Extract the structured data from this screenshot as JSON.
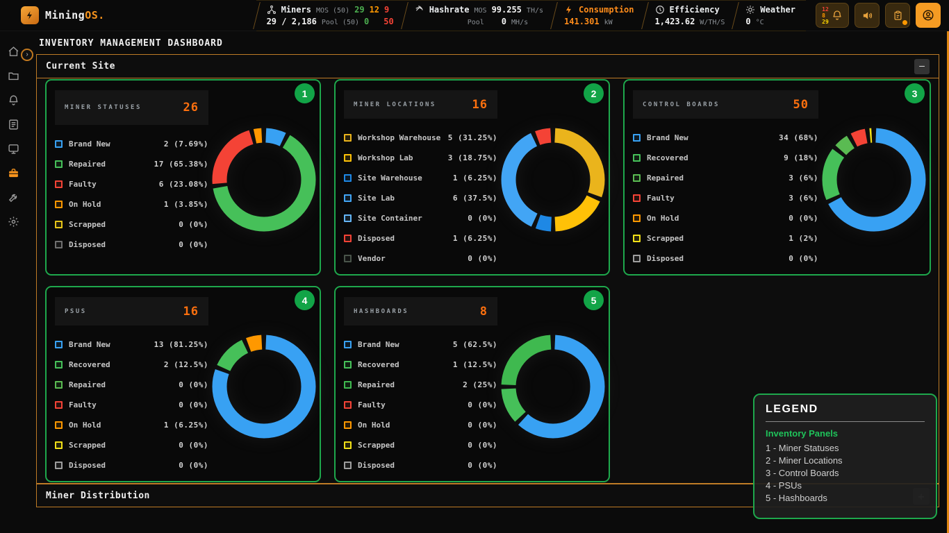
{
  "topbar": {
    "logo": {
      "name": "Mining",
      "suffix": "OS."
    },
    "miners": {
      "label": "Miners",
      "scope_label": "MOS (50)",
      "ok": "29",
      "warn": "12",
      "err": "9",
      "ratio": "29 / 2,186",
      "pool_label": "Pool (50)",
      "pool_ok": "0",
      "pool_err": "50"
    },
    "hashrate": {
      "label": "Hashrate",
      "mos_label": "MOS",
      "mos_value": "99.255",
      "mos_unit": "TH/s",
      "pool_label": "Pool",
      "pool_value": "0",
      "pool_unit": "MH/s"
    },
    "consumption": {
      "label": "Consumption",
      "value": "141.301",
      "unit": "kW"
    },
    "efficiency": {
      "label": "Efficiency",
      "value": "1,423.62",
      "unit": "W/TH/S"
    },
    "weather": {
      "label": "Weather",
      "value": "0",
      "unit": "°C"
    },
    "bell_badges": [
      {
        "text": "12",
        "color": "#f44336"
      },
      {
        "text": "8",
        "color": "#ff9800"
      },
      {
        "text": "29",
        "color": "#ffd600"
      }
    ]
  },
  "page": {
    "title": "INVENTORY MANAGEMENT DASHBOARD"
  },
  "panel": {
    "title": "Current Site",
    "minimize_label": "—"
  },
  "footer_panel": {
    "title": "Miner Distribution",
    "expand_label": "+"
  },
  "legend_panel": {
    "title": "LEGEND",
    "subtitle": "Inventory Panels",
    "items": [
      "1 - Miner Statuses",
      "2 - Miner Locations",
      "3 - Control Boards",
      "4 - PSUs",
      "5 - Hashboards"
    ]
  },
  "colors": {
    "accent_orange": "#f7941d",
    "panel_border": "#bf7c26",
    "card_border": "#1ea84c",
    "badge_green": "#12a447",
    "total_orange": "#ff700e",
    "legend_green": "#1fc25a"
  },
  "chart_data": [
    {
      "type": "donut",
      "badge": "1",
      "title": "MINER STATUSES",
      "total": "26",
      "segments": [
        {
          "label": "Brand New",
          "count": 2,
          "pct": "7.69",
          "color": "#38a1f3"
        },
        {
          "label": "Repaired",
          "count": 17,
          "pct": "65.38",
          "color": "#46c059"
        },
        {
          "label": "Faulty",
          "count": 6,
          "pct": "23.08",
          "color": "#f44336"
        },
        {
          "label": "On Hold",
          "count": 1,
          "pct": "3.85",
          "color": "#ff9800"
        },
        {
          "label": "Scrapped",
          "count": 0,
          "pct": "0",
          "color": "#e8c619"
        },
        {
          "label": "Disposed",
          "count": 0,
          "pct": "0",
          "color": "#6f6f6f"
        }
      ]
    },
    {
      "type": "donut",
      "badge": "2",
      "title": "MINER LOCATIONS",
      "total": "16",
      "segments": [
        {
          "label": "Workshop Warehouse",
          "count": 5,
          "pct": "31.25",
          "color": "#eab41c"
        },
        {
          "label": "Workshop Lab",
          "count": 3,
          "pct": "18.75",
          "color": "#ffc107"
        },
        {
          "label": "Site Warehouse",
          "count": 1,
          "pct": "6.25",
          "color": "#1e88e5"
        },
        {
          "label": "Site Lab",
          "count": 6,
          "pct": "37.5",
          "color": "#42a5f5"
        },
        {
          "label": "Site Container",
          "count": 0,
          "pct": "0",
          "color": "#64b5f6"
        },
        {
          "label": "Disposed",
          "count": 1,
          "pct": "6.25",
          "color": "#f44336"
        },
        {
          "label": "Vendor",
          "count": 0,
          "pct": "0",
          "color": "#49544a"
        }
      ]
    },
    {
      "type": "donut",
      "badge": "3",
      "title": "CONTROL BOARDS",
      "total": "50",
      "segments": [
        {
          "label": "Brand New",
          "count": 34,
          "pct": "68",
          "color": "#38a1f3"
        },
        {
          "label": "Recovered",
          "count": 9,
          "pct": "18",
          "color": "#46c059"
        },
        {
          "label": "Repaired",
          "count": 3,
          "pct": "6",
          "color": "#5abb52"
        },
        {
          "label": "Faulty",
          "count": 3,
          "pct": "6",
          "color": "#f44336"
        },
        {
          "label": "On Hold",
          "count": 0,
          "pct": "0",
          "color": "#ff9800"
        },
        {
          "label": "Scrapped",
          "count": 1,
          "pct": "2",
          "color": "#f2e018"
        },
        {
          "label": "Disposed",
          "count": 0,
          "pct": "0",
          "color": "#9e9e9e"
        }
      ]
    },
    {
      "type": "donut",
      "badge": "4",
      "title": "PSUS",
      "total": "16",
      "segments": [
        {
          "label": "Brand New",
          "count": 13,
          "pct": "81.25",
          "color": "#38a1f3"
        },
        {
          "label": "Recovered",
          "count": 2,
          "pct": "12.5",
          "color": "#46c059"
        },
        {
          "label": "Repaired",
          "count": 0,
          "pct": "0",
          "color": "#5abb52"
        },
        {
          "label": "Faulty",
          "count": 0,
          "pct": "0",
          "color": "#f44336"
        },
        {
          "label": "On Hold",
          "count": 1,
          "pct": "6.25",
          "color": "#ff9800"
        },
        {
          "label": "Scrapped",
          "count": 0,
          "pct": "0",
          "color": "#f2e018"
        },
        {
          "label": "Disposed",
          "count": 0,
          "pct": "0",
          "color": "#9e9e9e"
        }
      ]
    },
    {
      "type": "donut",
      "badge": "5",
      "title": "HASHBOARDS",
      "total": "8",
      "segments": [
        {
          "label": "Brand New",
          "count": 5,
          "pct": "62.5",
          "color": "#38a1f3"
        },
        {
          "label": "Recovered",
          "count": 1,
          "pct": "12.5",
          "color": "#46c059"
        },
        {
          "label": "Repaired",
          "count": 2,
          "pct": "25",
          "color": "#3fb94f"
        },
        {
          "label": "Faulty",
          "count": 0,
          "pct": "0",
          "color": "#f44336"
        },
        {
          "label": "On Hold",
          "count": 0,
          "pct": "0",
          "color": "#ff9800"
        },
        {
          "label": "Scrapped",
          "count": 0,
          "pct": "0",
          "color": "#f2e018"
        },
        {
          "label": "Disposed",
          "count": 0,
          "pct": "0",
          "color": "#9e9e9e"
        }
      ]
    }
  ]
}
